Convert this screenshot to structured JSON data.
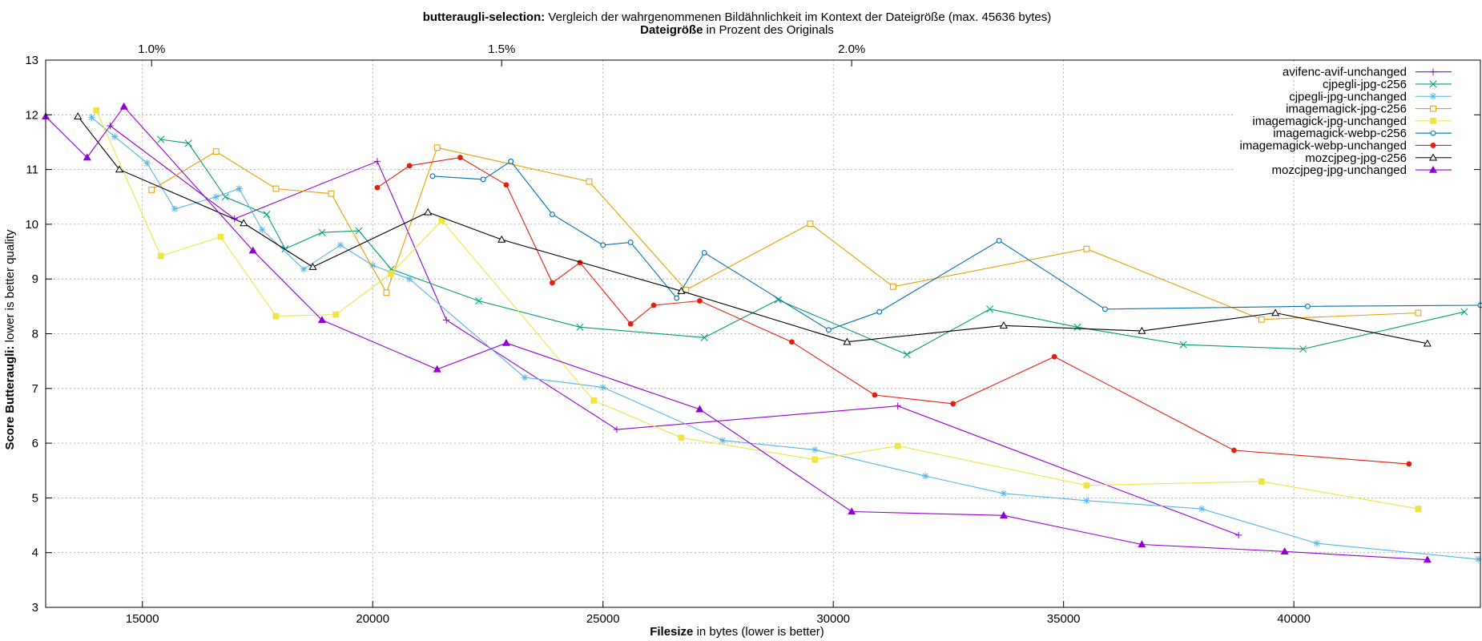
{
  "chart_data": {
    "type": "line",
    "title_bold": "butteraugli-selection:",
    "title_rest": " Vergleich der wahrgenommenen Bildähnlichkeit im Kontext der Dateigröße (max. 45636 bytes)",
    "top_axis_bold": "Dateigröße",
    "top_axis_rest": " in Prozent des Originals",
    "xlabel_bold": "Filesize",
    "xlabel_rest": " in bytes (lower is better)",
    "ylabel_bold": "Score Butteraugli:",
    "ylabel_rest": " lower is better quality",
    "xlim": [
      12900,
      44050
    ],
    "ylim": [
      3,
      13
    ],
    "x_ticks": [
      15000,
      20000,
      25000,
      30000,
      35000,
      40000
    ],
    "y_ticks": [
      3,
      4,
      5,
      6,
      7,
      8,
      9,
      10,
      11,
      12,
      13
    ],
    "top_ticks": [
      {
        "label": "1.0%",
        "x": 15200
      },
      {
        "label": "1.5%",
        "x": 22800
      },
      {
        "label": "2.0%",
        "x": 30400
      }
    ],
    "grid": true,
    "legend_position": "top-right",
    "series": [
      {
        "name": "avifenc-avif-unchanged",
        "color": "#9400d3",
        "marker": "plus",
        "x": [
          14300,
          17000,
          20100,
          21600,
          25300,
          31400,
          38800
        ],
        "y": [
          11.8,
          10.1,
          11.15,
          8.25,
          6.25,
          6.68,
          4.32
        ]
      },
      {
        "name": "cjpegli-jpg-c256",
        "color": "#009e73",
        "marker": "x",
        "x": [
          15400,
          16000,
          16800,
          17700,
          18100,
          18900,
          19700,
          20400,
          22300,
          24500,
          27200,
          28800,
          31600,
          33400,
          35300,
          37600,
          40200,
          43700
        ],
        "y": [
          11.55,
          11.48,
          10.5,
          10.18,
          9.55,
          9.85,
          9.88,
          9.18,
          8.6,
          8.12,
          7.93,
          8.62,
          7.62,
          8.45,
          8.12,
          7.8,
          7.72,
          8.4
        ]
      },
      {
        "name": "cjpegli-jpg-unchanged",
        "color": "#56b4e9",
        "marker": "star",
        "x": [
          13900,
          14400,
          15100,
          15700,
          16600,
          17100,
          17600,
          18500,
          19300,
          20000,
          20800,
          23300,
          25000,
          27600,
          29600,
          32000,
          33700,
          35500,
          38000,
          40500,
          44000
        ],
        "y": [
          11.95,
          11.6,
          11.12,
          10.28,
          10.5,
          10.65,
          9.9,
          9.18,
          9.62,
          9.25,
          9.0,
          7.2,
          7.02,
          6.05,
          5.88,
          5.4,
          5.08,
          4.95,
          4.8,
          4.17,
          3.88
        ]
      },
      {
        "name": "imagemagick-jpg-c256",
        "color": "#e69f00",
        "marker": "square",
        "x": [
          15200,
          16600,
          17900,
          19100,
          20300,
          21400,
          24700,
          26800,
          29500,
          31300,
          35500,
          39300,
          42700
        ],
        "y": [
          10.63,
          11.33,
          10.65,
          10.56,
          8.75,
          11.4,
          10.78,
          8.8,
          10.01,
          8.86,
          9.55,
          8.26,
          8.38
        ]
      },
      {
        "name": "imagemagick-jpg-unchanged",
        "color": "#f0e442",
        "marker": "filled-square",
        "x": [
          14000,
          15400,
          16700,
          17900,
          19200,
          20400,
          21500,
          24800,
          26700,
          29600,
          31400,
          35500,
          39300,
          42700
        ],
        "y": [
          12.08,
          9.42,
          9.77,
          8.32,
          8.35,
          9.1,
          10.07,
          6.78,
          6.1,
          5.7,
          5.95,
          5.23,
          5.3,
          4.8
        ]
      },
      {
        "name": "imagemagick-webp-c256",
        "color": "#0072b2",
        "marker": "circle",
        "x": [
          21300,
          22400,
          23000,
          23900,
          25000,
          25600,
          26600,
          27200,
          29900,
          31000,
          33600,
          35900,
          40300,
          44050
        ],
        "y": [
          10.88,
          10.82,
          11.15,
          10.18,
          9.62,
          9.67,
          8.65,
          9.48,
          8.07,
          8.4,
          9.7,
          8.45,
          8.5,
          8.52
        ]
      },
      {
        "name": "imagemagick-webp-unchanged",
        "color": "#e51e10",
        "marker": "filled-circle",
        "x": [
          20100,
          20800,
          21900,
          22900,
          23900,
          24500,
          25600,
          26100,
          27100,
          29100,
          30900,
          32600,
          34800,
          38700,
          42500
        ],
        "y": [
          10.67,
          11.07,
          11.22,
          10.72,
          8.93,
          9.3,
          8.18,
          8.52,
          8.6,
          7.85,
          6.88,
          6.72,
          7.58,
          5.87,
          5.62
        ]
      },
      {
        "name": "mozcjpeg-jpg-c256",
        "color": "#000000",
        "marker": "triangle",
        "x": [
          13600,
          14500,
          17200,
          18700,
          21200,
          22800,
          26700,
          30300,
          33700,
          36700,
          39600,
          42900
        ],
        "y": [
          11.97,
          11.0,
          10.02,
          9.22,
          10.22,
          9.72,
          8.78,
          7.85,
          8.15,
          8.05,
          8.38,
          7.82
        ]
      },
      {
        "name": "mozcjpeg-jpg-unchanged",
        "color": "#9400d3",
        "marker": "filled-triangle",
        "x": [
          12900,
          13800,
          14600,
          17400,
          18900,
          21400,
          22900,
          27100,
          30400,
          33700,
          36700,
          39800,
          42900
        ],
        "y": [
          11.97,
          11.22,
          12.15,
          9.52,
          8.25,
          7.35,
          7.83,
          6.62,
          4.75,
          4.68,
          4.15,
          4.02,
          3.87
        ]
      }
    ]
  }
}
